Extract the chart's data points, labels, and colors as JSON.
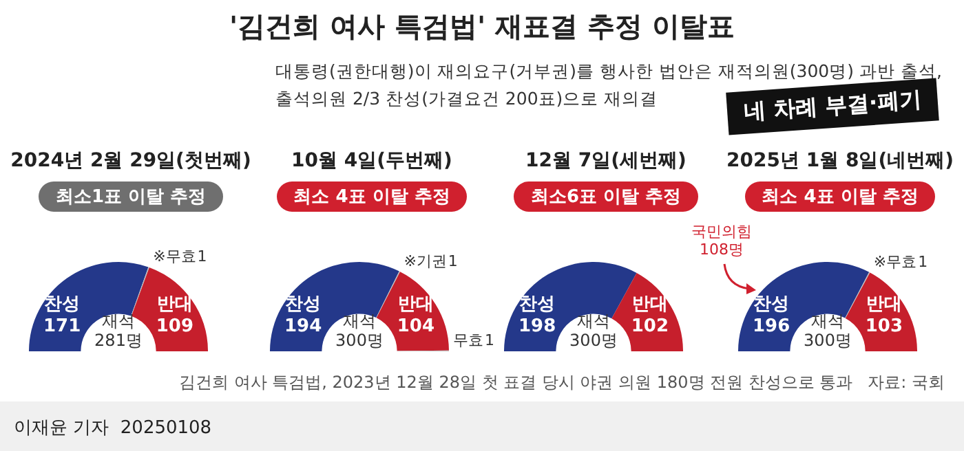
{
  "chart_data": [
    {
      "type": "other",
      "title": "'김건희 여사 특검법' 재표결 추정 이탈표",
      "subtitle": "대통령(권한대행)이 재의요구(거부권)를 행사한 법안은 재적의원(300명) 과반 출석,\n출석의원 2/3 찬성(가결요건 200표)으로 재의결",
      "annotations": [
        "네 차례 부결·폐기",
        "김건희 여사 특검법, 2023년 12월 28일 첫 표결 당시 야권 의원 180명 전원 찬성으로 통과",
        "자료: 국회",
        "이재윤 기자  20250108"
      ]
    },
    {
      "type": "donut",
      "title": "2024년 2월 29일(첫번째)",
      "subtitle": "최소1표 이탈 추정",
      "categories": [
        "찬성",
        "※무효",
        "반대"
      ],
      "values": [
        171,
        1,
        109
      ],
      "colors": [
        "#24388a",
        "#bdbdbd",
        "#c61f2c"
      ],
      "data_labels": true,
      "annotations": [
        "재석\n281명"
      ]
    },
    {
      "type": "donut",
      "title": "10월 4일(두번째)",
      "subtitle": "최소 4표 이탈 추정",
      "categories": [
        "찬성",
        "※기권",
        "반대",
        "무효"
      ],
      "values": [
        194,
        1,
        104,
        1
      ],
      "colors": [
        "#24388a",
        "#bdbdbd",
        "#c61f2c",
        "#bdbdbd"
      ],
      "data_labels": true,
      "annotations": [
        "재석\n300명"
      ]
    },
    {
      "type": "donut",
      "title": "12월 7일(세번째)",
      "subtitle": "최소6표 이탈 추정",
      "categories": [
        "찬성",
        "반대"
      ],
      "values": [
        198,
        102
      ],
      "colors": [
        "#24388a",
        "#c61f2c"
      ],
      "data_labels": true,
      "annotations": [
        "재석\n300명"
      ]
    },
    {
      "type": "donut",
      "title": "2025년 1월 8일(네번째)",
      "subtitle": "최소 4표 이탈 추정",
      "categories": [
        "찬성",
        "※무효",
        "반대"
      ],
      "values": [
        196,
        1,
        103
      ],
      "colors": [
        "#24388a",
        "#bdbdbd",
        "#c61f2c"
      ],
      "data_labels": true,
      "annotations": [
        "재석\n300명",
        "국민의힘\n108명"
      ]
    }
  ]
}
